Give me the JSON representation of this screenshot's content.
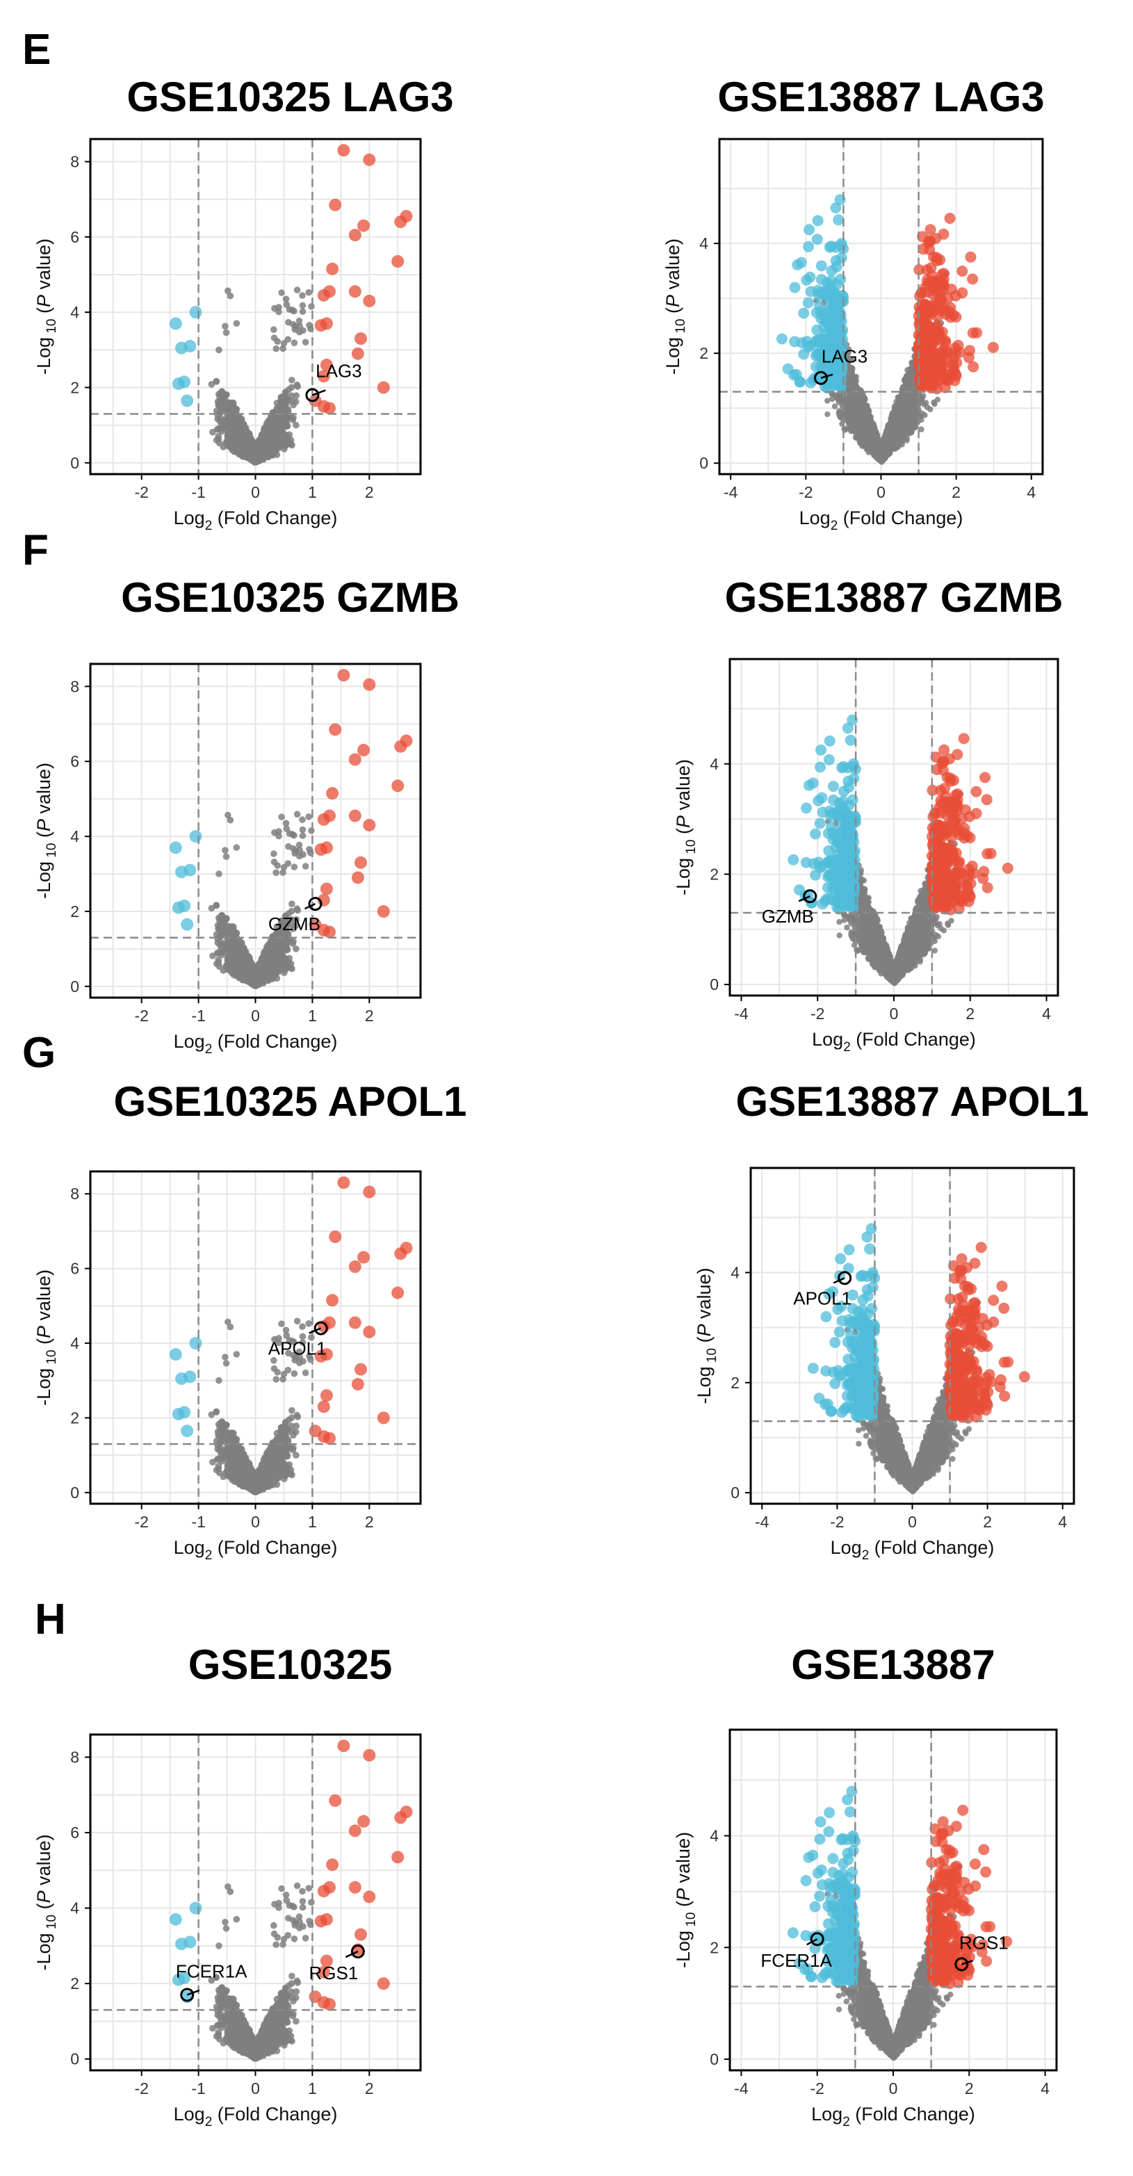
{
  "panel_letters": [
    "E",
    "F",
    "G",
    "H"
  ],
  "colors": {
    "up": "#e84d37",
    "down": "#4fbcd9",
    "ns": "#7f7f7f",
    "threshold_line": "#8a8a8a",
    "grid": "#e6e6e6",
    "highlight_stroke": "#000000"
  },
  "thresholds": {
    "log2fc": [
      -1,
      1
    ],
    "neg_log10_p": 1.3
  },
  "chart_data": [
    {
      "type": "scatter",
      "panel": "E",
      "dataset": "GSE10325",
      "title": "GSE10325 LAG3",
      "xlabel": "Log2 (Fold Change)",
      "ylabel": "-Log 10 (P value)",
      "xlim": [
        -2.9,
        2.9
      ],
      "ylim": [
        -0.3,
        8.6
      ],
      "xticks": [
        -2,
        -1,
        0,
        1,
        2
      ],
      "yticks": [
        0,
        2,
        4,
        6,
        8
      ],
      "grid": true,
      "highlighted": [
        {
          "gene": "LAG3",
          "x": 1.0,
          "y": 1.8
        }
      ]
    },
    {
      "type": "scatter",
      "panel": "E",
      "dataset": "GSE13887",
      "title": "GSE13887 LAG3",
      "xlabel": "Log2 (Fold Change)",
      "ylabel": "-Log 10 (P value)",
      "xlim": [
        -4.3,
        4.3
      ],
      "ylim": [
        -0.2,
        5.9
      ],
      "xticks": [
        -4,
        -2,
        0,
        2,
        4
      ],
      "yticks": [
        0,
        2,
        4
      ],
      "grid": true,
      "highlighted": [
        {
          "gene": "LAG3",
          "x": -1.6,
          "y": 1.55
        }
      ]
    },
    {
      "type": "scatter",
      "panel": "F",
      "dataset": "GSE10325",
      "title": "GSE10325 GZMB",
      "xlabel": "Log2 (Fold Change)",
      "ylabel": "-Log 10 (P value)",
      "xlim": [
        -2.9,
        2.9
      ],
      "ylim": [
        -0.3,
        8.6
      ],
      "xticks": [
        -2,
        -1,
        0,
        1,
        2
      ],
      "yticks": [
        0,
        2,
        4,
        6,
        8
      ],
      "grid": true,
      "highlighted": [
        {
          "gene": "GZMB",
          "x": 1.05,
          "y": 2.2
        }
      ]
    },
    {
      "type": "scatter",
      "panel": "F",
      "dataset": "GSE13887",
      "title": "GSE13887 GZMB",
      "xlabel": "Log2 (Fold Change)",
      "ylabel": "-Log 10 (P value)",
      "xlim": [
        -4.3,
        4.3
      ],
      "ylim": [
        -0.2,
        5.9
      ],
      "xticks": [
        -4,
        -2,
        0,
        2,
        4
      ],
      "yticks": [
        0,
        2,
        4
      ],
      "grid": true,
      "highlighted": [
        {
          "gene": "GZMB",
          "x": -2.2,
          "y": 1.6
        }
      ]
    },
    {
      "type": "scatter",
      "panel": "G",
      "dataset": "GSE10325",
      "title": "GSE10325 APOL1",
      "xlabel": "Log2 (Fold Change)",
      "ylabel": "-Log 10 (P value)",
      "xlim": [
        -2.9,
        2.9
      ],
      "ylim": [
        -0.3,
        8.6
      ],
      "xticks": [
        -2,
        -1,
        0,
        1,
        2
      ],
      "yticks": [
        0,
        2,
        4,
        6,
        8
      ],
      "grid": true,
      "highlighted": [
        {
          "gene": "APOL1",
          "x": 1.15,
          "y": 4.4
        }
      ]
    },
    {
      "type": "scatter",
      "panel": "G",
      "dataset": "GSE13887",
      "title": "GSE13887 APOL1",
      "xlabel": "Log2 (Fold Change)",
      "ylabel": "-Log 10 (P value)",
      "xlim": [
        -4.3,
        4.3
      ],
      "ylim": [
        -0.2,
        5.9
      ],
      "xticks": [
        -4,
        -2,
        0,
        2,
        4
      ],
      "yticks": [
        0,
        2,
        4
      ],
      "grid": true,
      "highlighted": [
        {
          "gene": "APOL1",
          "x": -1.8,
          "y": 3.9
        }
      ]
    },
    {
      "type": "scatter",
      "panel": "H",
      "dataset": "GSE10325",
      "title": "GSE10325",
      "xlabel": "Log2 (Fold Change)",
      "ylabel": "-Log 10 (P value)",
      "xlim": [
        -2.9,
        2.9
      ],
      "ylim": [
        -0.3,
        8.6
      ],
      "xticks": [
        -2,
        -1,
        0,
        1,
        2
      ],
      "yticks": [
        0,
        2,
        4,
        6,
        8
      ],
      "grid": true,
      "highlighted": [
        {
          "gene": "FCER1A",
          "x": -1.2,
          "y": 1.7
        },
        {
          "gene": "RGS1",
          "x": 1.8,
          "y": 2.85
        }
      ]
    },
    {
      "type": "scatter",
      "panel": "H",
      "dataset": "GSE13887",
      "title": "GSE13887",
      "xlabel": "Log2 (Fold Change)",
      "ylabel": "-Log 10 (P value)",
      "xlim": [
        -4.3,
        4.3
      ],
      "ylim": [
        -0.2,
        5.9
      ],
      "xticks": [
        -4,
        -2,
        0,
        2,
        4
      ],
      "yticks": [
        0,
        2,
        4
      ],
      "grid": true,
      "highlighted": [
        {
          "gene": "FCER1A",
          "x": -2.0,
          "y": 2.15
        },
        {
          "gene": "RGS1",
          "x": 1.8,
          "y": 1.7
        }
      ]
    }
  ]
}
